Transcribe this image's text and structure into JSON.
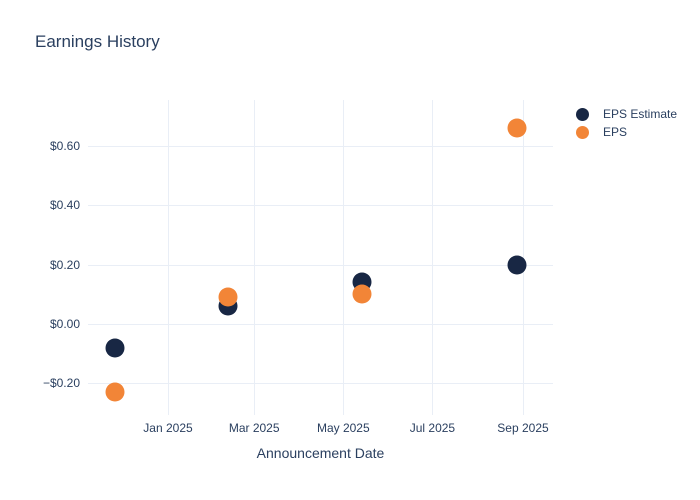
{
  "chart_data": {
    "type": "scatter",
    "title": "Earnings History",
    "xlabel": "Announcement Date",
    "ylabel": "",
    "grid": true,
    "legend_position": "outside-top-right",
    "background": "#ffffff",
    "colors": {
      "text": "#2a3f5f",
      "grid": "#e9eef6"
    },
    "x_ticks": [
      {
        "label": "Jan 2025",
        "date": "2025-01-01"
      },
      {
        "label": "Mar 2025",
        "date": "2025-03-01"
      },
      {
        "label": "May 2025",
        "date": "2025-05-01"
      },
      {
        "label": "Jul 2025",
        "date": "2025-07-01"
      },
      {
        "label": "Sep 2025",
        "date": "2025-09-01"
      }
    ],
    "y_ticks": [
      {
        "label": "$0.60",
        "value": 0.6
      },
      {
        "label": "$0.40",
        "value": 0.4
      },
      {
        "label": "$0.20",
        "value": 0.2
      },
      {
        "label": "$0.00",
        "value": 0.0
      },
      {
        "label": "−$0.20",
        "value": -0.2
      }
    ],
    "xlim": [
      "2024-11-07",
      "2025-09-21"
    ],
    "ylim": [
      -0.3,
      0.76
    ],
    "series": [
      {
        "name": "EPS Estimate",
        "color": "#182744",
        "marker": "circle",
        "dates": [
          "2024-11-26",
          "2025-02-11",
          "2025-05-14",
          "2025-08-28"
        ],
        "values": [
          -0.08,
          0.06,
          0.14,
          0.2
        ]
      },
      {
        "name": "EPS",
        "color": "#f28537",
        "marker": "circle",
        "dates": [
          "2024-11-26",
          "2025-02-11",
          "2025-05-14",
          "2025-08-28"
        ],
        "values": [
          -0.23,
          0.09,
          0.1,
          0.66
        ]
      }
    ]
  }
}
